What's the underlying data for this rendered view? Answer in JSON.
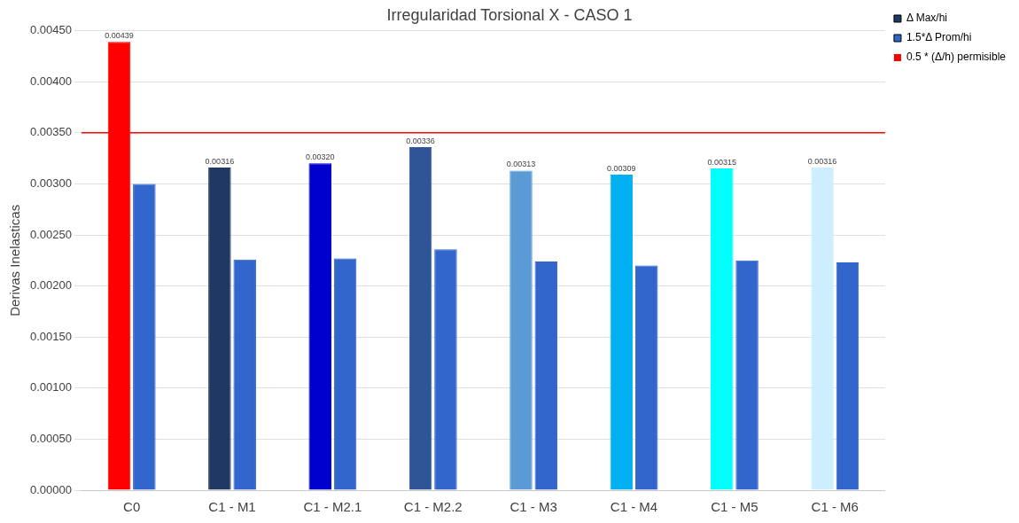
{
  "chart_data": {
    "type": "bar",
    "title": "Irregularidad Torsional X - CASO 1",
    "ylabel": "Derivas Inelasticas",
    "categories": [
      "C0",
      "C1 - M1",
      "C1 - M2.1",
      "C1 - M2.2",
      "C1 - M3",
      "C1 - M4",
      "C1 - M5",
      "C1 - M6"
    ],
    "series": [
      {
        "name": "Δ Max/hi",
        "color": "#1f3864",
        "colors": [
          "#ff0000",
          "#203864",
          "#0000cc",
          "#2f5597",
          "#5b9bd5",
          "#00b0f0",
          "#00ffff",
          "#cceeff"
        ],
        "values": [
          0.00439,
          0.00316,
          0.0032,
          0.00336,
          0.00313,
          0.00309,
          0.00315,
          0.00316
        ],
        "value_labels": [
          "0.00439",
          "0.00316",
          "0.00320",
          "0.00336",
          "0.00313",
          "0.00309",
          "0.00315",
          "0.00316"
        ]
      },
      {
        "name": "1.5*Δ Prom/hi",
        "color": "#3366cc",
        "values": [
          0.003,
          0.00226,
          0.00227,
          0.00236,
          0.00224,
          0.0022,
          0.00225,
          0.00223
        ]
      }
    ],
    "ylim": [
      0,
      0.0045
    ],
    "yticks": [
      {
        "value": 0,
        "label": "0.00000"
      },
      {
        "value": 0.0005,
        "label": "0.00050"
      },
      {
        "value": 0.001,
        "label": "0.00100"
      },
      {
        "value": 0.0015,
        "label": "0.00150"
      },
      {
        "value": 0.002,
        "label": "0.00200"
      },
      {
        "value": 0.0025,
        "label": "0.00250"
      },
      {
        "value": 0.003,
        "label": "0.00300"
      },
      {
        "value": 0.0035,
        "label": "0.00350"
      },
      {
        "value": 0.004,
        "label": "0.00400"
      },
      {
        "value": 0.0045,
        "label": "0.00450"
      }
    ],
    "ref_lines": [
      {
        "axis": "y",
        "value": 0.0035,
        "label": "0.5 * (Δ/h) permisible",
        "color": "#ff0000"
      }
    ],
    "grid": "y",
    "legend": "top right"
  }
}
